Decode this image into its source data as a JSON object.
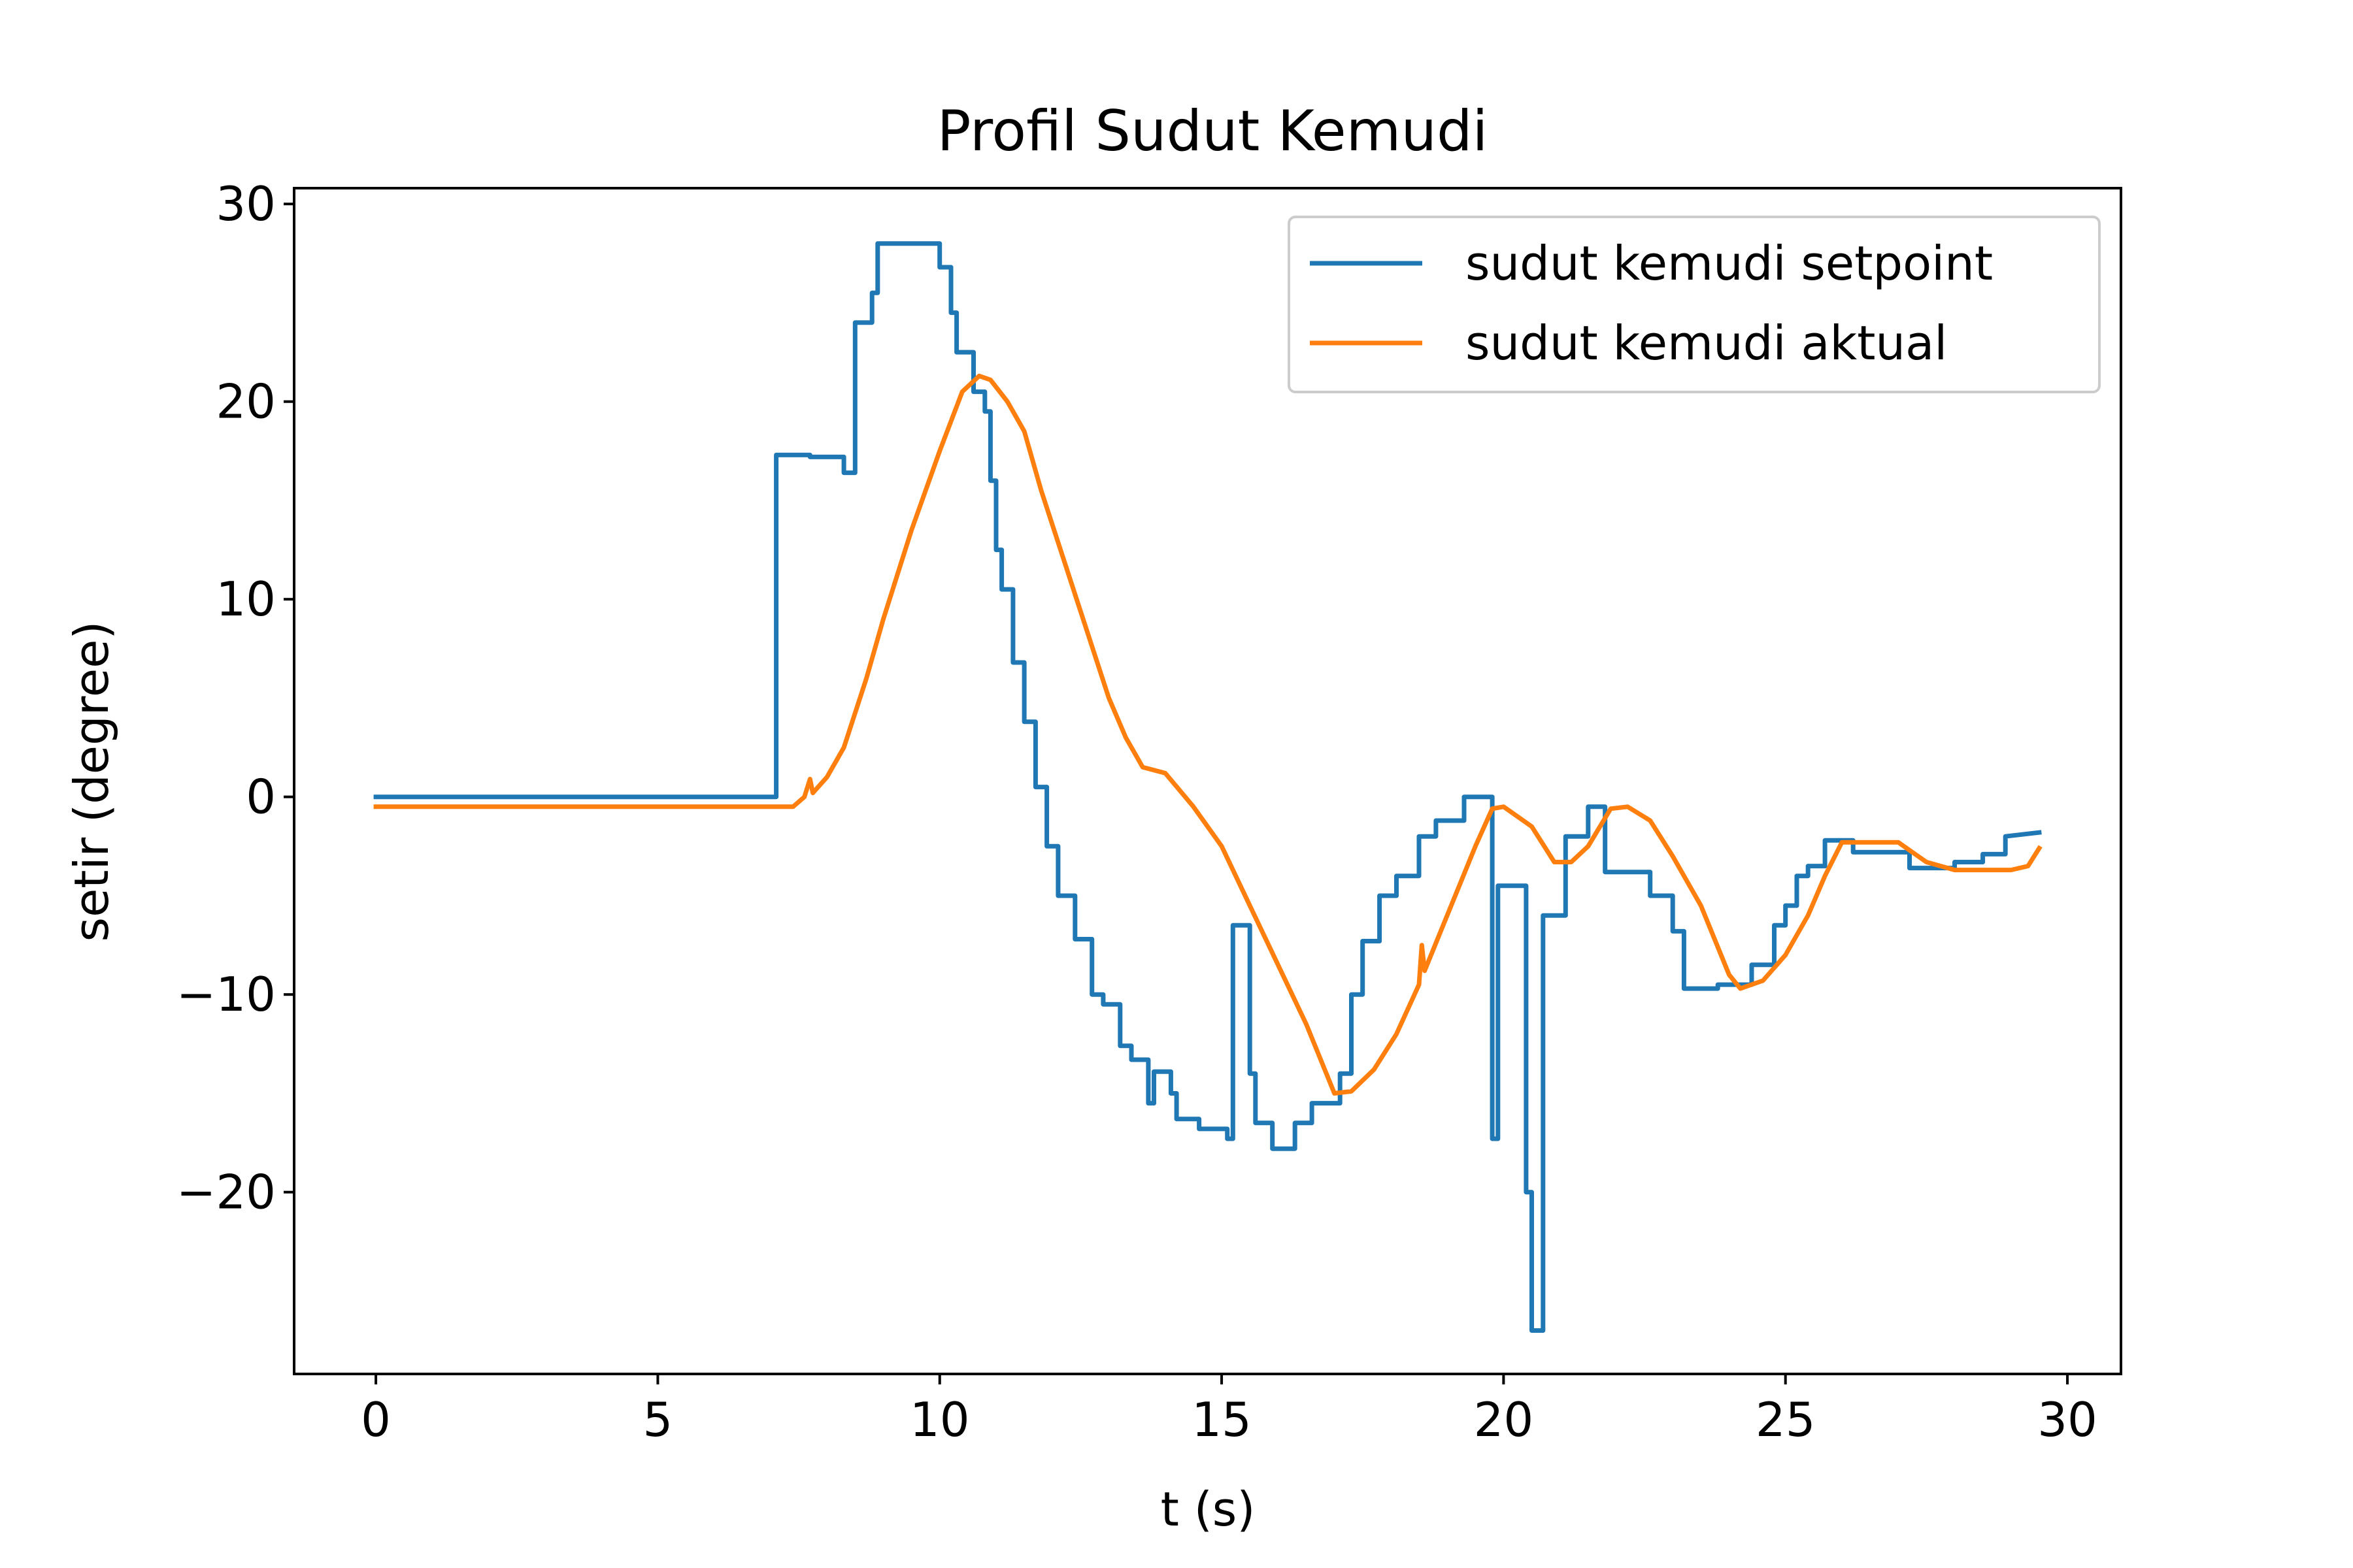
{
  "chart_data": {
    "type": "line",
    "title": "Profil Sudut Kemudi",
    "xlabel": "t (s)",
    "ylabel": "setir (degree)",
    "xlim": [
      -1.45,
      30.95
    ],
    "ylim": [
      -29.2,
      30.8
    ],
    "xticks": [
      0,
      5,
      10,
      15,
      20,
      25,
      30
    ],
    "xtick_labels": [
      "0",
      "5",
      "10",
      "15",
      "20",
      "25",
      "30"
    ],
    "yticks": [
      30,
      20,
      10,
      0,
      -10,
      -20
    ],
    "ytick_labels": [
      "30",
      "20",
      "10",
      "0",
      "−10",
      "−20"
    ],
    "grid": false,
    "legend_position": "upper right",
    "series": [
      {
        "name": "sudut kemudi setpoint",
        "color": "#1f77b4",
        "step": true,
        "points": [
          [
            0,
            0
          ],
          [
            7.1,
            0
          ],
          [
            7.1,
            17.3
          ],
          [
            7.7,
            17.3
          ],
          [
            7.7,
            17.2
          ],
          [
            8.3,
            17.2
          ],
          [
            8.3,
            16.4
          ],
          [
            8.5,
            16.4
          ],
          [
            8.5,
            24
          ],
          [
            8.8,
            24
          ],
          [
            8.8,
            25.5
          ],
          [
            8.9,
            25.5
          ],
          [
            8.9,
            28
          ],
          [
            10,
            28
          ],
          [
            10,
            26.8
          ],
          [
            10.2,
            26.8
          ],
          [
            10.2,
            24.5
          ],
          [
            10.3,
            24.5
          ],
          [
            10.3,
            22.5
          ],
          [
            10.6,
            22.5
          ],
          [
            10.6,
            20.5
          ],
          [
            10.8,
            20.5
          ],
          [
            10.8,
            19.5
          ],
          [
            10.9,
            19.5
          ],
          [
            10.9,
            16
          ],
          [
            11,
            16
          ],
          [
            11,
            12.5
          ],
          [
            11.1,
            12.5
          ],
          [
            11.1,
            10.5
          ],
          [
            11.3,
            10.5
          ],
          [
            11.3,
            6.8
          ],
          [
            11.5,
            6.8
          ],
          [
            11.5,
            3.8
          ],
          [
            11.7,
            3.8
          ],
          [
            11.7,
            0.5
          ],
          [
            11.9,
            0.5
          ],
          [
            11.9,
            -2.5
          ],
          [
            12.1,
            -2.5
          ],
          [
            12.1,
            -5
          ],
          [
            12.4,
            -5
          ],
          [
            12.4,
            -7.2
          ],
          [
            12.7,
            -7.2
          ],
          [
            12.7,
            -10
          ],
          [
            12.9,
            -10
          ],
          [
            12.9,
            -10.5
          ],
          [
            13.2,
            -10.5
          ],
          [
            13.2,
            -12.6
          ],
          [
            13.4,
            -12.6
          ],
          [
            13.4,
            -13.3
          ],
          [
            13.7,
            -13.3
          ],
          [
            13.7,
            -15.5
          ],
          [
            13.8,
            -15.5
          ],
          [
            13.8,
            -13.9
          ],
          [
            14.1,
            -13.9
          ],
          [
            14.1,
            -15
          ],
          [
            14.2,
            -15
          ],
          [
            14.2,
            -16.3
          ],
          [
            14.6,
            -16.3
          ],
          [
            14.6,
            -16.8
          ],
          [
            15.1,
            -16.8
          ],
          [
            15.1,
            -17.3
          ],
          [
            15.2,
            -17.3
          ],
          [
            15.2,
            -6.5
          ],
          [
            15.5,
            -6.5
          ],
          [
            15.5,
            -14
          ],
          [
            15.6,
            -14
          ],
          [
            15.6,
            -16.5
          ],
          [
            15.9,
            -16.5
          ],
          [
            15.9,
            -17.8
          ],
          [
            16.3,
            -17.8
          ],
          [
            16.3,
            -16.5
          ],
          [
            16.6,
            -16.5
          ],
          [
            16.6,
            -15.5
          ],
          [
            17.1,
            -15.5
          ],
          [
            17.1,
            -14
          ],
          [
            17.3,
            -14
          ],
          [
            17.3,
            -10
          ],
          [
            17.5,
            -10
          ],
          [
            17.5,
            -7.3
          ],
          [
            17.8,
            -7.3
          ],
          [
            17.8,
            -5
          ],
          [
            18.1,
            -5
          ],
          [
            18.1,
            -4
          ],
          [
            18.5,
            -4
          ],
          [
            18.5,
            -2
          ],
          [
            18.8,
            -2
          ],
          [
            18.8,
            -1.2
          ],
          [
            19.3,
            -1.2
          ],
          [
            19.3,
            0
          ],
          [
            19.8,
            0
          ],
          [
            19.8,
            -17.3
          ],
          [
            19.9,
            -17.3
          ],
          [
            19.9,
            -4.5
          ],
          [
            20.4,
            -4.5
          ],
          [
            20.4,
            -20
          ],
          [
            20.5,
            -20
          ],
          [
            20.5,
            -27
          ],
          [
            20.7,
            -27
          ],
          [
            20.7,
            -6
          ],
          [
            21.1,
            -6
          ],
          [
            21.1,
            -2
          ],
          [
            21.5,
            -2
          ],
          [
            21.5,
            -0.5
          ],
          [
            21.8,
            -0.5
          ],
          [
            21.8,
            -3.8
          ],
          [
            22.6,
            -3.8
          ],
          [
            22.6,
            -5
          ],
          [
            23,
            -5
          ],
          [
            23,
            -6.8
          ],
          [
            23.2,
            -6.8
          ],
          [
            23.2,
            -9.7
          ],
          [
            23.8,
            -9.7
          ],
          [
            23.8,
            -9.5
          ],
          [
            24.4,
            -9.5
          ],
          [
            24.4,
            -8.5
          ],
          [
            24.8,
            -8.5
          ],
          [
            24.8,
            -6.5
          ],
          [
            25,
            -6.5
          ],
          [
            25,
            -5.5
          ],
          [
            25.2,
            -5.5
          ],
          [
            25.2,
            -4
          ],
          [
            25.4,
            -4
          ],
          [
            25.4,
            -3.5
          ],
          [
            25.7,
            -3.5
          ],
          [
            25.7,
            -2.2
          ],
          [
            26.2,
            -2.2
          ],
          [
            26.2,
            -2.8
          ],
          [
            27.2,
            -2.8
          ],
          [
            27.2,
            -3.6
          ],
          [
            28,
            -3.6
          ],
          [
            28,
            -3.3
          ],
          [
            28.5,
            -3.3
          ],
          [
            28.5,
            -2.9
          ],
          [
            28.9,
            -2.9
          ],
          [
            28.9,
            -2
          ],
          [
            29.5,
            -1.8
          ]
        ]
      },
      {
        "name": "sudut kemudi aktual",
        "color": "#ff7f0e",
        "step": false,
        "points": [
          [
            0,
            -0.5
          ],
          [
            7.2,
            -0.5
          ],
          [
            7.4,
            -0.5
          ],
          [
            7.6,
            0
          ],
          [
            7.7,
            0.9
          ],
          [
            7.75,
            0.2
          ],
          [
            8,
            1
          ],
          [
            8.3,
            2.5
          ],
          [
            8.7,
            6
          ],
          [
            9,
            9
          ],
          [
            9.5,
            13.5
          ],
          [
            10,
            17.5
          ],
          [
            10.4,
            20.5
          ],
          [
            10.7,
            21.3
          ],
          [
            10.9,
            21.1
          ],
          [
            11.2,
            20
          ],
          [
            11.5,
            18.5
          ],
          [
            11.8,
            15.5
          ],
          [
            12.2,
            12
          ],
          [
            12.6,
            8.5
          ],
          [
            13,
            5
          ],
          [
            13.3,
            3
          ],
          [
            13.6,
            1.5
          ],
          [
            14,
            1.2
          ],
          [
            14.5,
            -0.5
          ],
          [
            15,
            -2.5
          ],
          [
            15.5,
            -5.5
          ],
          [
            16,
            -8.5
          ],
          [
            16.5,
            -11.5
          ],
          [
            17,
            -15
          ],
          [
            17.3,
            -14.9
          ],
          [
            17.7,
            -13.8
          ],
          [
            18.1,
            -12
          ],
          [
            18.5,
            -9.5
          ],
          [
            18.55,
            -7.5
          ],
          [
            18.6,
            -8.8
          ],
          [
            19,
            -6
          ],
          [
            19.5,
            -2.5
          ],
          [
            19.8,
            -0.6
          ],
          [
            20,
            -0.5
          ],
          [
            20.5,
            -1.5
          ],
          [
            20.9,
            -3.3
          ],
          [
            21.2,
            -3.3
          ],
          [
            21.5,
            -2.5
          ],
          [
            21.9,
            -0.6
          ],
          [
            22.2,
            -0.5
          ],
          [
            22.6,
            -1.2
          ],
          [
            23,
            -3
          ],
          [
            23.5,
            -5.5
          ],
          [
            24,
            -9
          ],
          [
            24.2,
            -9.7
          ],
          [
            24.6,
            -9.3
          ],
          [
            25,
            -8
          ],
          [
            25.4,
            -6
          ],
          [
            25.7,
            -4
          ],
          [
            26,
            -2.3
          ],
          [
            27,
            -2.3
          ],
          [
            27.5,
            -3.3
          ],
          [
            28,
            -3.7
          ],
          [
            29,
            -3.7
          ],
          [
            29.3,
            -3.5
          ],
          [
            29.5,
            -2.6
          ]
        ]
      }
    ]
  }
}
